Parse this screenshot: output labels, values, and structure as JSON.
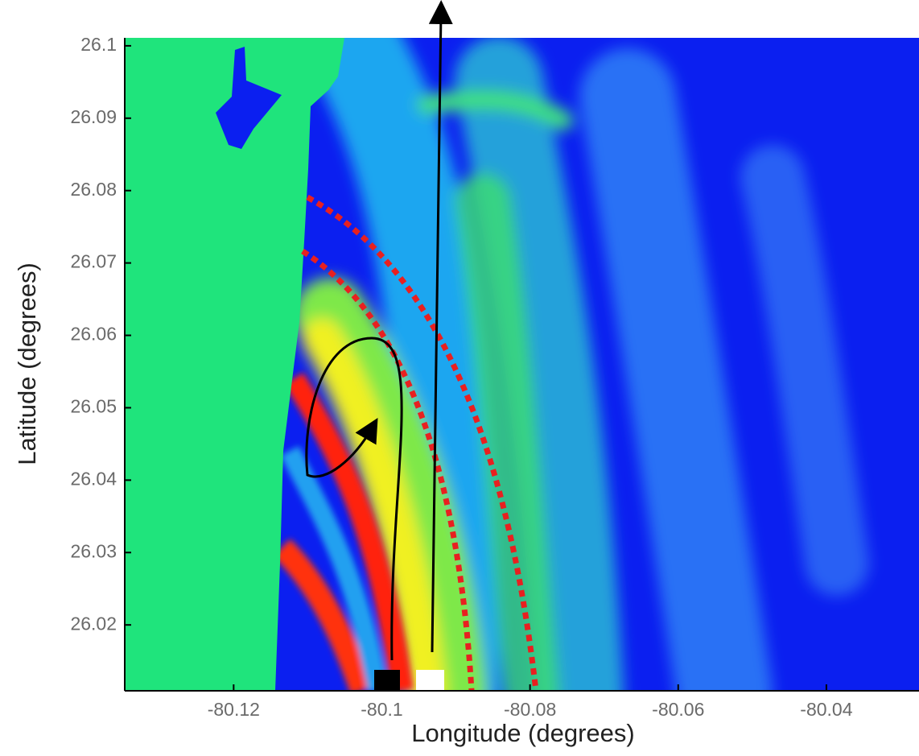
{
  "chart_data": {
    "type": "field",
    "xlabel": "Longitude (degrees)",
    "ylabel": "Latitude (degrees)",
    "xlim": [
      -80.1347,
      -80.0275
    ],
    "ylim": [
      26.0109,
      26.1011
    ],
    "xticks": [
      -80.12,
      -80.1,
      -80.08,
      -80.06,
      -80.04
    ],
    "yticks": [
      26.02,
      26.03,
      26.04,
      26.05,
      26.06,
      26.07,
      26.08,
      26.09,
      26.1
    ]
  }
}
